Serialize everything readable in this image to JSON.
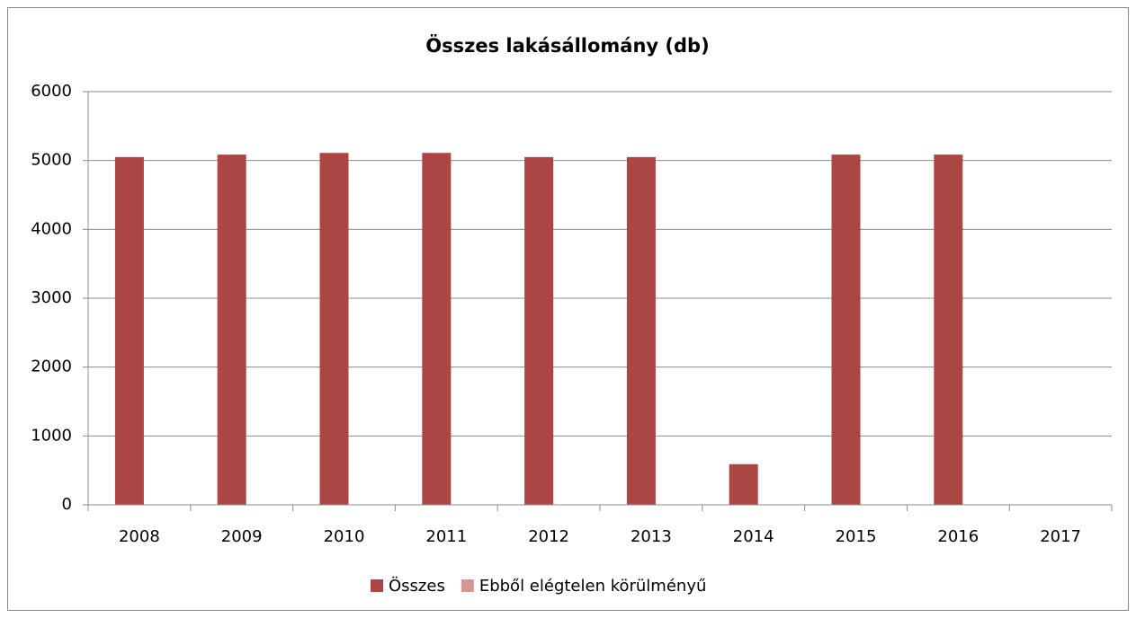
{
  "chart_data": {
    "type": "bar",
    "title": "Összes lakásállomány  (db)",
    "categories": [
      "2008",
      "2009",
      "2010",
      "2011",
      "2012",
      "2013",
      "2014",
      "2015",
      "2016",
      "2017"
    ],
    "series": [
      {
        "name": "Összes",
        "color": "#ab4645",
        "values": [
          5050,
          5085,
          5110,
          5110,
          5050,
          5050,
          590,
          5085,
          5085,
          null
        ]
      },
      {
        "name": "Ebből elégtelen körülményű",
        "color": "#d99594",
        "values": [
          0,
          0,
          0,
          0,
          0,
          0,
          0,
          0,
          0,
          null
        ]
      }
    ],
    "ylim": [
      0,
      6000
    ],
    "yticks": [
      0,
      1000,
      2000,
      3000,
      4000,
      5000,
      6000
    ],
    "grid": true,
    "legend": "bottom"
  }
}
